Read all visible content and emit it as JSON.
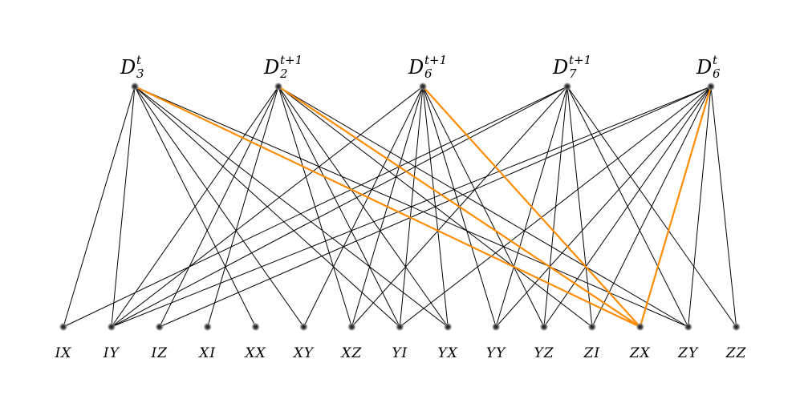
{
  "colors": {
    "edge": "#000000",
    "highlight": "#ff8c00",
    "node": "#333333"
  },
  "top_nodes": [
    {
      "id": "D3t",
      "base": "D",
      "sub": "3",
      "sup": "t"
    },
    {
      "id": "D2t1",
      "base": "D",
      "sub": "2",
      "sup": "t+1"
    },
    {
      "id": "D6t1",
      "base": "D",
      "sub": "6",
      "sup": "t+1"
    },
    {
      "id": "D7t1",
      "base": "D",
      "sub": "7",
      "sup": "t+1"
    },
    {
      "id": "D6t",
      "base": "D",
      "sub": "6",
      "sup": "t"
    }
  ],
  "bottom_nodes": [
    "IX",
    "IY",
    "IZ",
    "XI",
    "XX",
    "XY",
    "XZ",
    "YI",
    "YX",
    "YY",
    "YZ",
    "ZI",
    "ZX",
    "ZY",
    "ZZ"
  ],
  "edges": [
    {
      "from": "D3t",
      "to": [
        "IX",
        "IY",
        "XX",
        "XY",
        "YI",
        "YX",
        "ZY",
        "ZX"
      ]
    },
    {
      "from": "D2t1",
      "to": [
        "IY",
        "IZ",
        "XI",
        "XZ",
        "YI",
        "YX",
        "ZI",
        "ZY",
        "ZX"
      ]
    },
    {
      "from": "D6t1",
      "to": [
        "IY",
        "XY",
        "XZ",
        "YI",
        "YX",
        "YY",
        "YZ",
        "ZX"
      ]
    },
    {
      "from": "D7t1",
      "to": [
        "IX",
        "IY",
        "XZ",
        "YY",
        "YZ",
        "ZI",
        "ZY",
        "ZZ"
      ]
    },
    {
      "from": "D6t",
      "to": [
        "IY",
        "IZ",
        "YI",
        "YY",
        "YZ",
        "ZI",
        "ZY",
        "ZZ",
        "ZX"
      ]
    }
  ],
  "highlighted_edges": [
    [
      "D3t",
      "ZX"
    ],
    [
      "D2t1",
      "ZX"
    ],
    [
      "D6t1",
      "ZX"
    ],
    [
      "D6t",
      "ZX"
    ]
  ]
}
